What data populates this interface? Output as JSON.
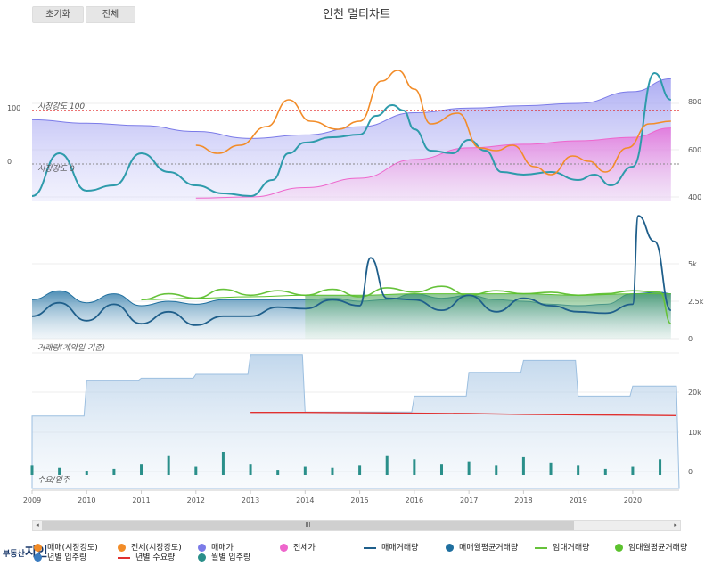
{
  "toolbar": {
    "reset_label": "초기화",
    "all_label": "전체"
  },
  "title": "인천 멀티차트",
  "logo_text": "부동산",
  "logo_text_big": "지인",
  "scroll_thumb": "III",
  "colors": {
    "sale_strength": "#f28c28",
    "jeonse_strength": "#f28c28",
    "sale_price": "#7b7be8",
    "jeonse_price": "#ee66cc",
    "sale_volume": "#1f5f8b",
    "sale_monthly_avg": "#1f6f9f",
    "rent_volume": "#66c23a",
    "rent_monthly_avg": "#5cc22e",
    "annual_supply": "#3a7cc0",
    "annual_demand": "#e03030",
    "monthly_supply": "#2a8f8a",
    "teal": "#2e9bab",
    "ref_red": "#e02020",
    "ref_gray": "#888888"
  },
  "chart_data": [
    {
      "type": "area",
      "name": "price_panel",
      "left_ticks": [
        "100",
        "0"
      ],
      "right_ticks": [
        "800",
        "600",
        "400"
      ],
      "annotations": [
        "시장강도 100",
        "시장강도 0"
      ],
      "series": [
        {
          "name": "매매가",
          "x": [
            2009,
            2010,
            2011,
            2012,
            2013,
            2014,
            2015,
            2016,
            2017,
            2018,
            2019,
            2020,
            2020.7
          ],
          "values": [
            730,
            715,
            705,
            680,
            650,
            665,
            700,
            760,
            780,
            790,
            800,
            850,
            905
          ]
        },
        {
          "name": "전세가",
          "x": [
            2012,
            2013,
            2014,
            2015,
            2016,
            2017,
            2018,
            2019,
            2020,
            2020.7
          ],
          "values": [
            395,
            400,
            440,
            480,
            560,
            610,
            625,
            640,
            655,
            695
          ]
        },
        {
          "name": "매매(시장강도)",
          "x": [
            2009,
            2009.5,
            2010,
            2010.5,
            2011,
            2011.5,
            2012,
            2012.5,
            2013,
            2013.4,
            2013.7,
            2014,
            2014.5,
            2015,
            2015.3,
            2015.6,
            2015.8,
            2016,
            2016.3,
            2016.7,
            2017,
            2017.3,
            2017.6,
            2018,
            2018.5,
            2019,
            2019.3,
            2019.6,
            2020,
            2020.4,
            2020.7
          ],
          "values": [
            -60,
            20,
            -50,
            -40,
            20,
            -15,
            -40,
            -55,
            -60,
            -30,
            20,
            40,
            50,
            55,
            90,
            110,
            100,
            65,
            25,
            20,
            45,
            25,
            -15,
            -20,
            -15,
            -30,
            -20,
            -40,
            -5,
            170,
            120
          ]
        },
        {
          "name": "전세(시장강도)",
          "x": [
            2012,
            2012.4,
            2012.8,
            2013.3,
            2013.7,
            2014.1,
            2014.6,
            2015,
            2015.4,
            2015.7,
            2016,
            2016.3,
            2016.8,
            2017.2,
            2017.5,
            2017.8,
            2018.2,
            2018.5,
            2018.9,
            2019.2,
            2019.5,
            2019.9,
            2020.3,
            2020.7
          ],
          "values": [
            35,
            20,
            35,
            70,
            120,
            80,
            65,
            80,
            155,
            175,
            140,
            75,
            95,
            30,
            25,
            35,
            -5,
            -20,
            15,
            5,
            -15,
            30,
            75,
            80
          ]
        }
      ]
    },
    {
      "type": "area",
      "name": "volume_panel",
      "right_ticks": [
        "5k",
        "2.5k",
        "0"
      ],
      "series": [
        {
          "name": "매매거래량",
          "x": [
            2009,
            2009.5,
            2010,
            2010.5,
            2011,
            2011.5,
            2012,
            2012.5,
            2013,
            2013.5,
            2014,
            2014.5,
            2015,
            2015.2,
            2015.5,
            2016,
            2016.5,
            2017,
            2017.5,
            2018,
            2018.5,
            2019,
            2019.5,
            2020,
            2020.1,
            2020.4,
            2020.7
          ],
          "values": [
            1500,
            2400,
            1200,
            2300,
            1000,
            1800,
            900,
            1500,
            1500,
            2100,
            2000,
            2600,
            2200,
            5400,
            2700,
            2600,
            1900,
            2900,
            1800,
            2700,
            2200,
            1800,
            1700,
            2300,
            8200,
            6500,
            1900
          ]
        },
        {
          "name": "매매월평균거래량",
          "x": [
            2009,
            2009.5,
            2010,
            2010.5,
            2011,
            2011.5,
            2012,
            2012.5,
            2013,
            2014,
            2014.5,
            2015,
            2015.5,
            2016,
            2016.5,
            2017,
            2017.5,
            2018,
            2018.5,
            2019,
            2019.5,
            2020,
            2020.5,
            2020.7
          ],
          "values": [
            2600,
            3200,
            2400,
            3000,
            2200,
            2500,
            2300,
            2600,
            2600,
            2600,
            2700,
            2500,
            2600,
            3000,
            2700,
            2900,
            2600,
            2500,
            2300,
            2200,
            2300,
            3000,
            3100,
            3000
          ]
        },
        {
          "name": "임대거래량",
          "x": [
            2011,
            2011.5,
            2012,
            2012.5,
            2013,
            2013.5,
            2014,
            2014.5,
            2015,
            2015.5,
            2016,
            2016.5,
            2017,
            2017.5,
            2018,
            2018.5,
            2019,
            2019.5,
            2020,
            2020.5,
            2020.7
          ],
          "values": [
            2600,
            3000,
            2700,
            3300,
            2900,
            3200,
            2900,
            3300,
            2800,
            3400,
            3100,
            3500,
            2900,
            3200,
            3000,
            3100,
            2900,
            3000,
            3200,
            3100,
            1000
          ]
        },
        {
          "name": "임대월평균거래량",
          "x": [
            2011,
            2012,
            2013,
            2014,
            2015,
            2016,
            2017,
            2018,
            2019,
            2020,
            2020.7
          ],
          "values": [
            2600,
            2700,
            2800,
            2900,
            2900,
            3000,
            3000,
            3000,
            2900,
            3000,
            3000
          ]
        }
      ]
    },
    {
      "type": "area",
      "name": "supply_panel",
      "right_ticks": [
        "20k",
        "10k",
        "0"
      ],
      "annotations": [
        "거래량(계약일 기준)",
        "수요/입주"
      ],
      "x_ticks": [
        "2009",
        "2010",
        "2011",
        "2012",
        "2013",
        "2014",
        "2015",
        "2016",
        "2017",
        "2018",
        "2019",
        "2020"
      ],
      "series": [
        {
          "name": "년별 입주량",
          "x": [
            2009,
            2010,
            2011,
            2012,
            2013,
            2014,
            2015,
            2016,
            2017,
            2018,
            2019,
            2020
          ],
          "values": [
            14000,
            23000,
            23500,
            24500,
            29500,
            15000,
            15000,
            19000,
            25000,
            28000,
            19000,
            21500
          ]
        },
        {
          "name": "년별 수요량",
          "x": [
            2013,
            2014,
            2015,
            2016,
            2017,
            2018,
            2019,
            2020,
            2020.8
          ],
          "values": [
            14900,
            14900,
            14800,
            14700,
            14600,
            14400,
            14300,
            14200,
            14100
          ]
        },
        {
          "name": "월별 입주량",
          "x": [
            2009,
            2009.5,
            2010,
            2010.5,
            2011,
            2011.5,
            2012,
            2012.5,
            2013,
            2013.5,
            2014,
            2014.5,
            2015,
            2015.5,
            2016,
            2016.5,
            2017,
            2017.5,
            2018,
            2018.5,
            2019,
            2019.5,
            2020,
            2020.5
          ],
          "values": [
            900,
            700,
            400,
            600,
            1000,
            1800,
            800,
            2200,
            1000,
            500,
            800,
            700,
            900,
            1800,
            1500,
            1000,
            1300,
            900,
            1700,
            1200,
            900,
            600,
            800,
            1500
          ]
        }
      ]
    }
  ],
  "legend": [
    {
      "label": "매매(시장강도)",
      "kind": "dot",
      "color": "#f28c28"
    },
    {
      "label": "전세(시장강도)",
      "kind": "dot",
      "color": "#f28c28"
    },
    {
      "label": "매매가",
      "kind": "dot",
      "color": "#7b7be8"
    },
    {
      "label": "전세가",
      "kind": "dot",
      "color": "#ee66cc"
    },
    {
      "label": "매매거래량",
      "kind": "line",
      "color": "#1f5f8b"
    },
    {
      "label": "매매월평균거래량",
      "kind": "dot",
      "color": "#1f6f9f"
    },
    {
      "label": "임대거래량",
      "kind": "line",
      "color": "#66c23a"
    },
    {
      "label": "임대월평균거래량",
      "kind": "dot",
      "color": "#5cc22e"
    },
    {
      "label": "년별 입주량",
      "kind": "dot",
      "color": "#3a7cc0"
    },
    {
      "label": "년별 수요량",
      "kind": "line",
      "color": "#e03030"
    },
    {
      "label": "월별 입주량",
      "kind": "dot",
      "color": "#2a8f8a"
    }
  ]
}
